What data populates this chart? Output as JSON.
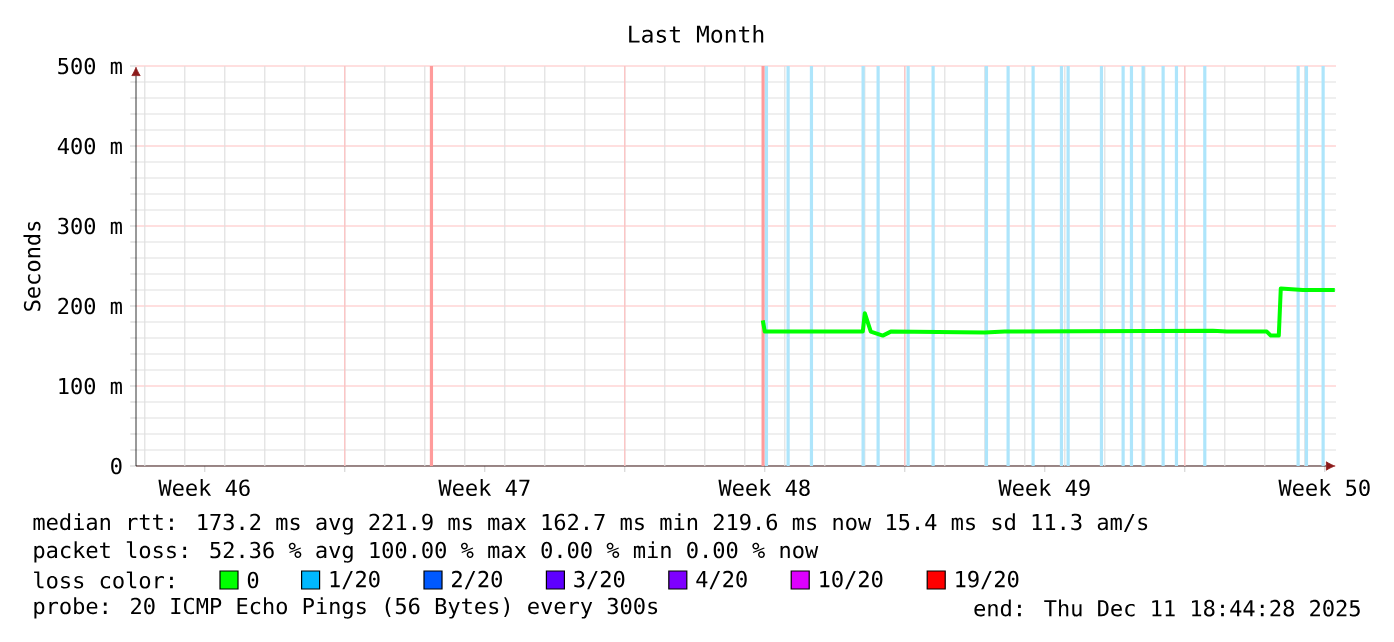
{
  "chart_data": {
    "type": "line",
    "title": "Last Month",
    "ylabel": "Seconds",
    "xlim": [
      "2025-11-11T18:44",
      "2025-12-11T18:44"
    ],
    "xticks": [
      {
        "value": "2025-11-13T12:00",
        "label": "Week 46"
      },
      {
        "value": "2025-11-17",
        "label": null
      },
      {
        "value": "2025-11-20T12:00",
        "label": "Week 47"
      },
      {
        "value": "2025-11-24",
        "label": null
      },
      {
        "value": "2025-11-27T12:00",
        "label": "Week 48"
      },
      {
        "value": "2025-12-01",
        "label": null
      },
      {
        "value": "2025-12-04T12:00",
        "label": "Week 49"
      },
      {
        "value": "2025-12-08",
        "label": null
      },
      {
        "value": "2025-12-11T12:00",
        "label": "Week 50"
      }
    ],
    "ylim": [
      0,
      500
    ],
    "yticks": [
      0,
      {
        "value": 100,
        "label": "100 m"
      },
      {
        "value": 200,
        "label": "200 m"
      },
      {
        "value": 300,
        "label": "300 m"
      },
      {
        "value": 400,
        "label": "400 m"
      },
      {
        "value": 500,
        "label": "500 m"
      }
    ],
    "grid": true,
    "legend": "bottom",
    "legend_title": "loss color:",
    "series": [
      {
        "name": "0",
        "color": "#00ff00",
        "x": [
          "2025-11-27T10:48",
          "2025-11-27T12:00",
          "2025-11-29T22:48",
          "2025-11-30T00:00",
          "2025-11-30T03:36",
          "2025-11-30T10:48",
          "2025-11-30T15:36",
          "2025-12-03T00:00",
          "2025-12-03T12:00",
          "2025-12-08T16:48",
          "2025-12-09T01:12",
          "2025-12-10T01:12",
          "2025-12-10T03:36",
          "2025-12-10T08:24",
          "2025-12-10T09:36",
          "2025-12-10T22:48",
          "2025-12-11T18:00"
        ],
        "values": [
          182,
          168,
          168,
          191,
          168,
          163,
          168,
          167,
          168,
          169,
          168,
          168,
          163,
          163,
          222,
          220,
          220
        ]
      },
      {
        "name": "1/20",
        "color": "#00b8ff"
      },
      {
        "name": "2/20",
        "color": "#0059ff"
      },
      {
        "name": "3/20",
        "color": "#5e00ff"
      },
      {
        "name": "4/20",
        "color": "#7e00ff"
      },
      {
        "name": "10/20",
        "color": "#dd00ff"
      },
      {
        "name": "19/20",
        "color": "#ff0000"
      }
    ],
    "ref_lines": [
      {
        "axis": "x",
        "value": "2025-11-19T04:00",
        "color": "#ff9b9b"
      },
      {
        "axis": "x",
        "value": "2025-11-27T11:00",
        "color": "#ff9b9b"
      },
      {
        "axis": "x",
        "value": "2025-11-27T13:00",
        "color": "#aee5fb"
      },
      {
        "axis": "x",
        "value": "2025-11-28T02:00",
        "color": "#aee5fb"
      },
      {
        "axis": "x",
        "value": "2025-11-28T16:00",
        "color": "#aee5fb"
      },
      {
        "axis": "x",
        "value": "2025-11-29T23:00",
        "color": "#aee5fb"
      },
      {
        "axis": "x",
        "value": "2025-11-30T08:00",
        "color": "#aee5fb"
      },
      {
        "axis": "x",
        "value": "2025-12-01T02:00",
        "color": "#aee5fb"
      },
      {
        "axis": "x",
        "value": "2025-12-01T17:00",
        "color": "#aee5fb"
      },
      {
        "axis": "x",
        "value": "2025-12-03T01:00",
        "color": "#aee5fb"
      },
      {
        "axis": "x",
        "value": "2025-12-03T14:00",
        "color": "#aee5fb"
      },
      {
        "axis": "x",
        "value": "2025-12-04T05:00",
        "color": "#aee5fb"
      },
      {
        "axis": "x",
        "value": "2025-12-04T22:00",
        "color": "#aee5fb"
      },
      {
        "axis": "x",
        "value": "2025-12-05T02:00",
        "color": "#aee5fb"
      },
      {
        "axis": "x",
        "value": "2025-12-05T22:00",
        "color": "#aee5fb"
      },
      {
        "axis": "x",
        "value": "2025-12-06T11:00",
        "color": "#aee5fb"
      },
      {
        "axis": "x",
        "value": "2025-12-06T16:00",
        "color": "#aee5fb"
      },
      {
        "axis": "x",
        "value": "2025-12-06T23:00",
        "color": "#aee5fb"
      },
      {
        "axis": "x",
        "value": "2025-12-07T11:00",
        "color": "#aee5fb"
      },
      {
        "axis": "x",
        "value": "2025-12-07T19:00",
        "color": "#aee5fb"
      },
      {
        "axis": "x",
        "value": "2025-12-08T12:00",
        "color": "#aee5fb"
      },
      {
        "axis": "x",
        "value": "2025-12-10T20:00",
        "color": "#aee5fb"
      },
      {
        "axis": "x",
        "value": "2025-12-11T01:00",
        "color": "#aee5fb"
      },
      {
        "axis": "x",
        "value": "2025-12-11T11:00",
        "color": "#aee5fb"
      }
    ],
    "annotations": [
      "median rtt:  173.2 ms avg  221.9 ms max  162.7 ms min  219.6 ms now  15.4 ms sd  11.3   am/s",
      "packet loss: 52.36 % avg  100.00 % max  0.00 % min  0.00 % now",
      "probe:       20 ICMP Echo Pings (56 Bytes) every 300s",
      "end: Thu Dec 11 18:44:28 2025"
    ]
  }
}
